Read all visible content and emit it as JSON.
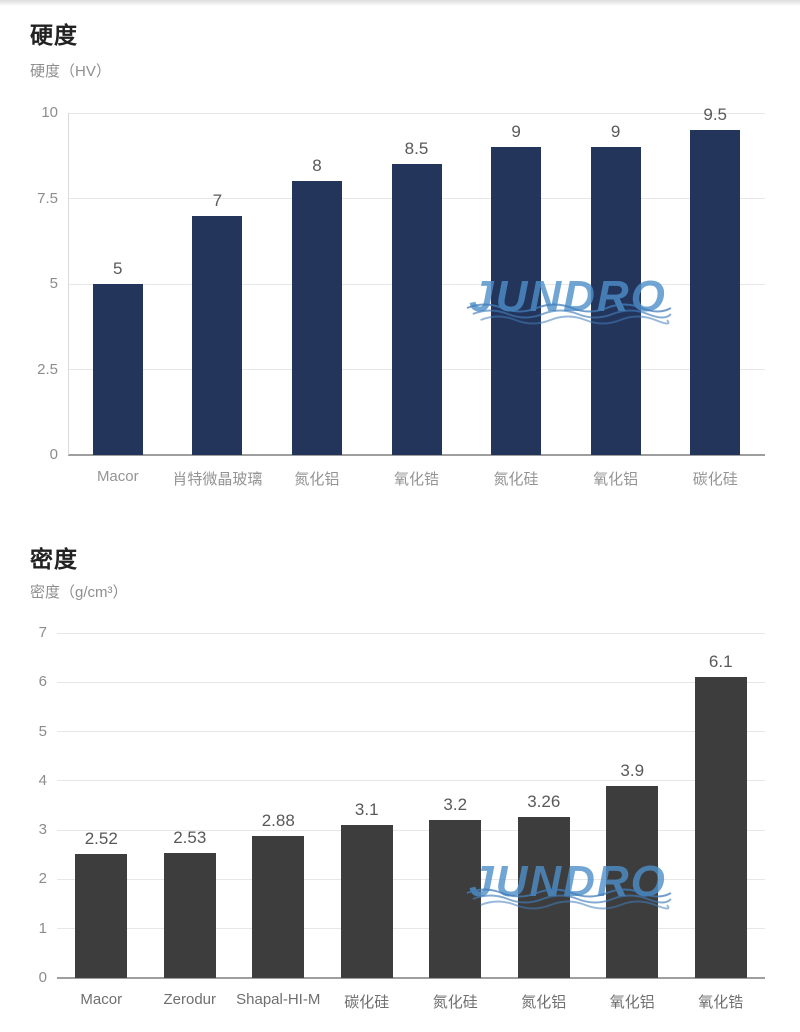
{
  "page": {
    "background": "#ffffff"
  },
  "watermark": {
    "text": "JUNDRO",
    "color": "#4d8fc9"
  },
  "chart_data": [
    {
      "type": "bar",
      "title": "硬度",
      "ylabel": "硬度（HV）",
      "xlabel": "",
      "categories": [
        "Macor",
        "肖特微晶玻璃",
        "氮化铝",
        "氧化锆",
        "氮化硅",
        "氧化铝",
        "碳化硅"
      ],
      "values": [
        5,
        7,
        8,
        8.5,
        9,
        9,
        9.5
      ],
      "value_labels": [
        "5",
        "7",
        "8",
        "8.5",
        "9",
        "9",
        "9.5"
      ],
      "ylim": [
        0,
        10
      ],
      "yticks": [
        0,
        2.5,
        5,
        7.5,
        10
      ],
      "ytick_labels": [
        "0",
        "2.5",
        "5",
        "7.5",
        "10"
      ],
      "grid": true,
      "legend": null,
      "bar_color": "#24355c"
    },
    {
      "type": "bar",
      "title": "密度",
      "ylabel": "密度（g/cm³）",
      "xlabel": "",
      "categories": [
        "Macor",
        "Zerodur",
        "Shapal-HI-M",
        "碳化硅",
        "氮化硅",
        "氮化铝",
        "氧化铝",
        "氧化锆"
      ],
      "values": [
        2.52,
        2.53,
        2.88,
        3.1,
        3.2,
        3.26,
        3.9,
        6.1
      ],
      "value_labels": [
        "2.52",
        "2.53",
        "2.88",
        "3.1",
        "3.2",
        "3.26",
        "3.9",
        "6.1"
      ],
      "ylim": [
        0,
        7
      ],
      "yticks": [
        0,
        1,
        2,
        3,
        4,
        5,
        6,
        7
      ],
      "ytick_labels": [
        "0",
        "1",
        "2",
        "3",
        "4",
        "5",
        "6",
        "7"
      ],
      "grid": true,
      "legend": null,
      "bar_color": "#3d3d3d"
    }
  ]
}
